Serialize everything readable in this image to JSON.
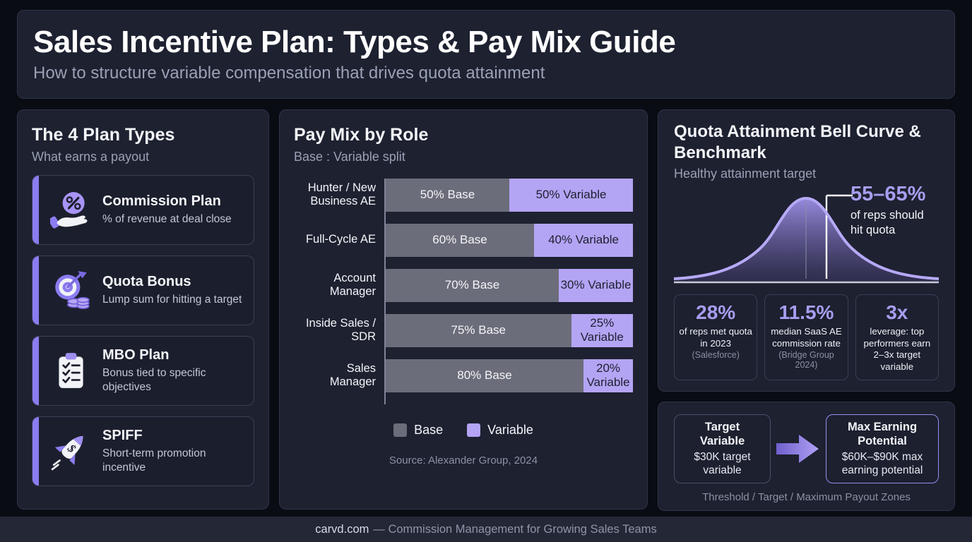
{
  "header": {
    "title": "Sales Incentive Plan: Types & Pay Mix Guide",
    "subtitle": "How to structure variable compensation that drives quota attainment"
  },
  "plan_types": {
    "title": "The 4 Plan Types",
    "subtitle": "What earns a payout",
    "items": [
      {
        "name": "Commission Plan",
        "description": "% of revenue at deal close",
        "icon": "hand-percent-icon"
      },
      {
        "name": "Quota Bonus",
        "description": "Lump sum for hitting a target",
        "icon": "target-coins-icon"
      },
      {
        "name": "MBO Plan",
        "description": "Bonus tied to specific objectives",
        "icon": "clipboard-checklist-icon"
      },
      {
        "name": "SPIFF",
        "description": "Short-term promotion incentive",
        "icon": "rocket-dollar-icon"
      }
    ]
  },
  "pay_mix": {
    "title": "Pay Mix by Role",
    "subtitle": "Base : Variable split",
    "legend": [
      {
        "label": "Base",
        "color": "#6c6d7a"
      },
      {
        "label": "Variable",
        "color": "#b4a4f4"
      }
    ],
    "source": "Source: Alexander Group, 2024"
  },
  "bell": {
    "title": "Quota Attainment Bell Curve & Benchmark",
    "subtitle": "Healthy attainment target",
    "annotation": {
      "value": "55–65%",
      "text": "of reps should hit quota"
    },
    "stats": [
      {
        "value": "28%",
        "label": "of reps met quota in 2023",
        "source": "(Salesforce)"
      },
      {
        "value": "11.5%",
        "label": "median SaaS AE commission rate",
        "source": "(Bridge Group 2024)"
      },
      {
        "value": "3x",
        "label": "leverage: top performers earn 2–3x target variable",
        "source": ""
      }
    ]
  },
  "zones": {
    "boxes": [
      {
        "title": "Target Variable",
        "text": "$30K target variable"
      },
      {
        "title": "Max Earning Potential",
        "text": "$60K–$90K max earning potential"
      }
    ],
    "caption": "Threshold / Target / Maximum Payout Zones"
  },
  "footer": {
    "brand": "carvd.com",
    "tagline": "— Commission Management for Growing Sales Teams"
  },
  "colors": {
    "accent_purple": "#8b7cf0",
    "variable_purple": "#b4a4f4",
    "base_gray": "#6c6d7a",
    "stat_purple": "#a79ef0",
    "panel_bg": "#1d2130",
    "page_bg": "#0a0c14"
  },
  "chart_data": [
    {
      "type": "bar",
      "orientation": "horizontal",
      "stacked": true,
      "title": "Pay Mix by Role",
      "subtitle": "Base : Variable split",
      "categories": [
        "Hunter / New Business AE",
        "Full-Cycle AE",
        "Account Manager",
        "Inside Sales / SDR",
        "Sales Manager"
      ],
      "category_lines": [
        [
          "Hunter / New",
          "Business AE"
        ],
        [
          "Full-Cycle AE"
        ],
        [
          "Account",
          "Manager"
        ],
        [
          "Inside Sales /",
          "SDR"
        ],
        [
          "Sales",
          "Manager"
        ]
      ],
      "series": [
        {
          "name": "Base",
          "color": "#6c6d7a",
          "text_color": "#f4f5f9",
          "values": [
            50,
            60,
            70,
            75,
            80
          ]
        },
        {
          "name": "Variable",
          "color": "#b4a4f4",
          "text_color": "#1d2030",
          "values": [
            50,
            40,
            30,
            25,
            20
          ]
        }
      ],
      "bar_labels": [
        [
          "50% Base",
          "50% Variable"
        ],
        [
          "60% Base",
          "40% Variable"
        ],
        [
          "70% Base",
          "30% Variable"
        ],
        [
          "75% Base",
          "25% Variable"
        ],
        [
          "80% Base",
          "20% Variable"
        ]
      ],
      "xlim": [
        0,
        100
      ],
      "legend_position": "bottom",
      "source": "Source: Alexander Group, 2024"
    },
    {
      "type": "area",
      "shape": "normal-distribution-bell-curve",
      "title": "Quota Attainment Bell Curve & Benchmark",
      "subtitle": "Healthy attainment target",
      "annotation": {
        "value": "55–65%",
        "text": "of reps should hit quota",
        "marker_position_percent": 57
      },
      "benchmarks": [
        {
          "value": "28%",
          "label": "of reps met quota in 2023",
          "source": "(Salesforce)"
        },
        {
          "value": "11.5%",
          "label": "median SaaS AE commission rate",
          "source": "(Bridge Group 2024)"
        },
        {
          "value": "3x",
          "label": "leverage: top performers earn 2–3x target variable"
        }
      ]
    }
  ]
}
